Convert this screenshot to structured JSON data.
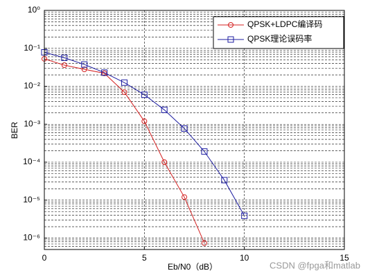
{
  "chart_data": {
    "type": "line",
    "xlabel": "Eb/N0（dB）",
    "ylabel": "BER",
    "xlim": [
      0,
      15
    ],
    "xticks": [
      0,
      5,
      10,
      15
    ],
    "ylim": [
      5e-07,
      1
    ],
    "yticks": [
      {
        "value": 1,
        "label": "10⁰"
      },
      {
        "value": 0.1,
        "label": "10⁻¹"
      },
      {
        "value": 0.01,
        "label": "10⁻²"
      },
      {
        "value": 0.001,
        "label": "10⁻³"
      },
      {
        "value": 0.0001,
        "label": "10⁻⁴"
      },
      {
        "value": 1e-05,
        "label": "10⁻⁵"
      },
      {
        "value": 1e-06,
        "label": "10⁻⁶"
      }
    ],
    "log_y": true,
    "grid": true,
    "minor_grid": true,
    "legend": "upper right",
    "series": [
      {
        "name": "QPSK+LDPC编译码",
        "color": "#d42020",
        "marker": "circle",
        "x": [
          0,
          1,
          2,
          3,
          4,
          5,
          6,
          7,
          8
        ],
        "values": [
          0.053,
          0.036,
          0.028,
          0.022,
          0.007,
          0.0012,
          0.0001,
          1.2e-05,
          7.4e-07
        ]
      },
      {
        "name": "QPSK理论误码率",
        "color": "#1c1ca0",
        "marker": "square",
        "x": [
          0,
          1,
          2,
          3,
          4,
          5,
          6,
          7,
          8,
          9,
          10
        ],
        "values": [
          0.0786,
          0.0563,
          0.0375,
          0.0229,
          0.0125,
          0.006,
          0.00239,
          0.00077,
          0.000191,
          3.36e-05,
          3.87e-06
        ]
      }
    ],
    "watermark": "CSDN @fpga和matlab"
  }
}
